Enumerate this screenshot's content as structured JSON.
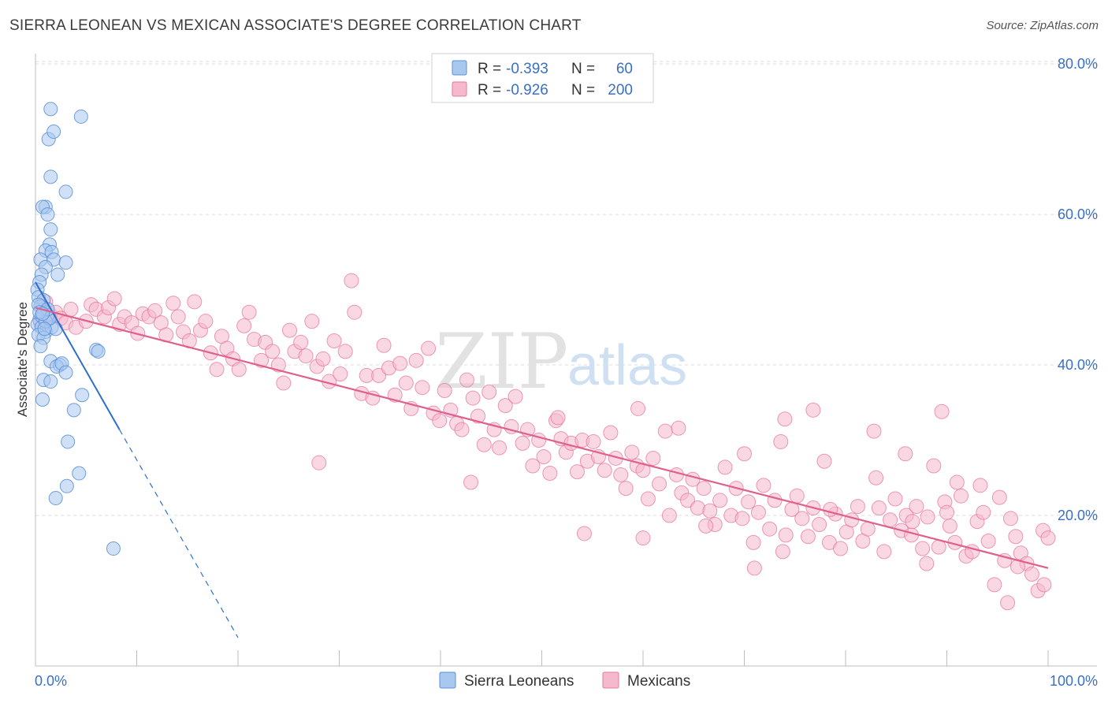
{
  "title": "SIERRA LEONEAN VS MEXICAN ASSOCIATE'S DEGREE CORRELATION CHART",
  "source": "Source: ZipAtlas.com",
  "watermark": {
    "zip": "ZIP",
    "atlas": "atlas"
  },
  "colors": {
    "blue_fill": "#a9c8f0",
    "blue_stroke": "#5b8fd6",
    "blue_line": "#2f6fcc",
    "pink_fill": "#f5b8cc",
    "pink_stroke": "#e7779d",
    "pink_line": "#e0608d",
    "grid": "#dcdcdc",
    "tick_text": "#3a6fc4"
  },
  "legend": {
    "rows": [
      {
        "r_label": "R = ",
        "r_value": "-0.393",
        "n_label": "N = ",
        "n_value": "60"
      },
      {
        "r_label": "R = ",
        "r_value": "-0.926",
        "n_label": "N = ",
        "n_value": "200"
      }
    ]
  },
  "bottom_legend": [
    "Sierra Leoneans",
    "Mexicans"
  ],
  "chart_data": {
    "type": "scatter",
    "xlabel": "",
    "ylabel": "Associate's Degree",
    "xlim": [
      0,
      100
    ],
    "ylim": [
      0,
      82
    ],
    "x_tick_labels": [
      "0.0%",
      "100.0%"
    ],
    "y_ticks": [
      20,
      40,
      60,
      80
    ],
    "y_tick_labels": [
      "20.0%",
      "40.0%",
      "60.0%",
      "80.0%"
    ],
    "grid": true,
    "legend_placement": "top-center",
    "series": [
      {
        "name": "Sierra Leoneans",
        "trend": {
          "x0": 0,
          "y0": 51.0,
          "x1": 8.3,
          "y1": 31.4,
          "dash_to_x": 20
        },
        "points": [
          [
            1.5,
            74
          ],
          [
            4.5,
            73
          ],
          [
            1.3,
            70
          ],
          [
            1.8,
            71
          ],
          [
            1.5,
            65
          ],
          [
            3,
            63
          ],
          [
            1,
            61
          ],
          [
            0.7,
            61
          ],
          [
            1.2,
            60
          ],
          [
            1.5,
            58
          ],
          [
            1.4,
            56
          ],
          [
            1.0,
            55.2
          ],
          [
            1.6,
            55
          ],
          [
            0.5,
            54
          ],
          [
            1.8,
            54
          ],
          [
            3.0,
            53.6
          ],
          [
            1.0,
            53
          ],
          [
            0.6,
            52
          ],
          [
            0.4,
            51
          ],
          [
            2.2,
            52
          ],
          [
            0.2,
            50
          ],
          [
            0.3,
            49
          ],
          [
            0.8,
            48.6
          ],
          [
            0.5,
            47.8
          ],
          [
            0.9,
            47
          ],
          [
            1.2,
            46.6
          ],
          [
            0.4,
            46
          ],
          [
            0.2,
            45.4
          ],
          [
            0.6,
            45
          ],
          [
            1.0,
            44.4
          ],
          [
            1.6,
            45
          ],
          [
            2,
            44.8
          ],
          [
            0.3,
            44
          ],
          [
            0.8,
            43.6
          ],
          [
            0.5,
            42.5
          ],
          [
            6,
            42
          ],
          [
            6.2,
            41.8
          ],
          [
            1.5,
            40.5
          ],
          [
            2.4,
            40
          ],
          [
            2.1,
            39.8
          ],
          [
            2.6,
            40.2
          ],
          [
            3.0,
            39
          ],
          [
            0.8,
            38
          ],
          [
            1.5,
            37.8
          ],
          [
            4.6,
            36
          ],
          [
            0.7,
            35.4
          ],
          [
            3.8,
            34
          ],
          [
            3.2,
            29.8
          ],
          [
            4.3,
            25.6
          ],
          [
            3.1,
            23.9
          ],
          [
            2.0,
            22.3
          ],
          [
            7.7,
            15.6
          ],
          [
            0.3,
            48
          ],
          [
            0.6,
            46.5
          ],
          [
            1.0,
            45.8
          ],
          [
            1.4,
            46.2
          ],
          [
            0.9,
            44.8
          ],
          [
            1.2,
            47.4
          ],
          [
            0.4,
            47
          ],
          [
            0.7,
            46.8
          ]
        ]
      },
      {
        "name": "Mexicans",
        "trend": {
          "x0": 0,
          "y0": 47.6,
          "x1": 100,
          "y1": 13.0
        },
        "points": [
          [
            0.5,
            45.6
          ],
          [
            1.0,
            48.4
          ],
          [
            1.5,
            46.6
          ],
          [
            2.0,
            47.0
          ],
          [
            2.5,
            46.2
          ],
          [
            3.0,
            45.6
          ],
          [
            3.5,
            47.4
          ],
          [
            4.0,
            45.0
          ],
          [
            5.0,
            45.8
          ],
          [
            5.5,
            48.0
          ],
          [
            6.0,
            47.4
          ],
          [
            6.8,
            46.4
          ],
          [
            7.2,
            47.6
          ],
          [
            7.8,
            48.8
          ],
          [
            8.3,
            45.4
          ],
          [
            8.8,
            46.4
          ],
          [
            9.5,
            45.6
          ],
          [
            10.1,
            44.2
          ],
          [
            10.6,
            46.8
          ],
          [
            11.2,
            46.4
          ],
          [
            11.8,
            47.2
          ],
          [
            12.4,
            45.6
          ],
          [
            12.9,
            44.0
          ],
          [
            13.6,
            48.2
          ],
          [
            14.1,
            46.4
          ],
          [
            14.6,
            44.4
          ],
          [
            15.2,
            43.2
          ],
          [
            15.7,
            48.4
          ],
          [
            16.3,
            44.6
          ],
          [
            16.8,
            45.8
          ],
          [
            17.3,
            41.6
          ],
          [
            17.9,
            39.4
          ],
          [
            18.4,
            43.8
          ],
          [
            18.9,
            42.2
          ],
          [
            19.5,
            40.8
          ],
          [
            20.1,
            39.4
          ],
          [
            20.6,
            45.2
          ],
          [
            21.1,
            47.0
          ],
          [
            21.6,
            43.4
          ],
          [
            22.3,
            40.6
          ],
          [
            22.7,
            43.0
          ],
          [
            23.4,
            41.8
          ],
          [
            24.0,
            40.0
          ],
          [
            24.5,
            37.6
          ],
          [
            25.1,
            44.6
          ],
          [
            25.6,
            41.8
          ],
          [
            26.2,
            43.0
          ],
          [
            26.7,
            41.2
          ],
          [
            27.3,
            45.8
          ],
          [
            27.8,
            39.8
          ],
          [
            28.4,
            40.8
          ],
          [
            29.0,
            37.8
          ],
          [
            29.5,
            43.2
          ],
          [
            30.1,
            38.8
          ],
          [
            30.6,
            41.8
          ],
          [
            31.2,
            51.2
          ],
          [
            31.5,
            47.0
          ],
          [
            32.2,
            36.2
          ],
          [
            32.7,
            38.6
          ],
          [
            33.3,
            35.6
          ],
          [
            33.9,
            38.6
          ],
          [
            34.4,
            42.6
          ],
          [
            34.9,
            39.6
          ],
          [
            35.5,
            36.0
          ],
          [
            36.0,
            40.2
          ],
          [
            36.6,
            37.6
          ],
          [
            37.1,
            34.2
          ],
          [
            37.6,
            40.6
          ],
          [
            38.2,
            37.0
          ],
          [
            38.8,
            42.2
          ],
          [
            39.3,
            33.6
          ],
          [
            39.9,
            32.6
          ],
          [
            40.4,
            36.6
          ],
          [
            41.0,
            34.0
          ],
          [
            41.6,
            32.2
          ],
          [
            42.1,
            31.4
          ],
          [
            42.6,
            38.0
          ],
          [
            43.2,
            35.6
          ],
          [
            43.7,
            33.2
          ],
          [
            44.3,
            29.4
          ],
          [
            44.8,
            36.4
          ],
          [
            45.3,
            31.4
          ],
          [
            45.8,
            29.0
          ],
          [
            46.4,
            34.6
          ],
          [
            47.0,
            31.8
          ],
          [
            47.4,
            35.8
          ],
          [
            48.1,
            29.6
          ],
          [
            48.6,
            31.4
          ],
          [
            49.1,
            26.6
          ],
          [
            49.7,
            30.0
          ],
          [
            50.2,
            27.8
          ],
          [
            50.8,
            25.6
          ],
          [
            51.4,
            32.6
          ],
          [
            51.9,
            30.2
          ],
          [
            52.4,
            28.4
          ],
          [
            52.9,
            29.6
          ],
          [
            53.5,
            25.8
          ],
          [
            54.0,
            30.0
          ],
          [
            54.5,
            27.2
          ],
          [
            55.1,
            29.8
          ],
          [
            55.6,
            27.8
          ],
          [
            56.2,
            26.0
          ],
          [
            56.8,
            31.0
          ],
          [
            57.3,
            27.6
          ],
          [
            57.8,
            25.4
          ],
          [
            58.3,
            23.6
          ],
          [
            58.9,
            28.4
          ],
          [
            59.4,
            26.6
          ],
          [
            60.0,
            26.0
          ],
          [
            60.5,
            22.2
          ],
          [
            61.0,
            27.6
          ],
          [
            61.6,
            24.2
          ],
          [
            62.2,
            31.2
          ],
          [
            62.6,
            20.0
          ],
          [
            63.3,
            25.4
          ],
          [
            63.8,
            23.0
          ],
          [
            64.4,
            22.0
          ],
          [
            64.9,
            24.8
          ],
          [
            65.4,
            21.0
          ],
          [
            66.0,
            23.6
          ],
          [
            66.6,
            20.6
          ],
          [
            67.1,
            18.8
          ],
          [
            67.6,
            22.0
          ],
          [
            68.1,
            26.4
          ],
          [
            68.7,
            20.0
          ],
          [
            69.2,
            23.6
          ],
          [
            69.8,
            19.6
          ],
          [
            70.4,
            21.8
          ],
          [
            70.9,
            16.4
          ],
          [
            71.4,
            20.4
          ],
          [
            71.9,
            24.0
          ],
          [
            72.5,
            18.2
          ],
          [
            73.0,
            22.0
          ],
          [
            73.6,
            29.8
          ],
          [
            74.1,
            17.4
          ],
          [
            74.7,
            20.8
          ],
          [
            75.2,
            22.6
          ],
          [
            75.7,
            19.6
          ],
          [
            76.3,
            17.2
          ],
          [
            76.8,
            21.0
          ],
          [
            77.4,
            18.8
          ],
          [
            77.9,
            27.2
          ],
          [
            78.4,
            16.4
          ],
          [
            79.0,
            20.2
          ],
          [
            79.5,
            15.6
          ],
          [
            80.1,
            17.8
          ],
          [
            80.6,
            19.4
          ],
          [
            81.2,
            21.2
          ],
          [
            81.7,
            16.6
          ],
          [
            82.2,
            18.2
          ],
          [
            82.8,
            31.2
          ],
          [
            83.3,
            21.0
          ],
          [
            83.8,
            15.2
          ],
          [
            84.4,
            19.4
          ],
          [
            84.9,
            22.2
          ],
          [
            85.5,
            18.0
          ],
          [
            86.0,
            20.0
          ],
          [
            86.5,
            17.4
          ],
          [
            87.0,
            21.2
          ],
          [
            87.6,
            15.6
          ],
          [
            88.1,
            19.8
          ],
          [
            88.7,
            26.6
          ],
          [
            89.2,
            15.8
          ],
          [
            89.8,
            21.8
          ],
          [
            90.3,
            18.6
          ],
          [
            90.8,
            16.4
          ],
          [
            91.4,
            22.6
          ],
          [
            91.9,
            14.6
          ],
          [
            92.5,
            15.2
          ],
          [
            93.0,
            19.2
          ],
          [
            93.6,
            20.4
          ],
          [
            94.1,
            16.6
          ],
          [
            94.7,
            10.8
          ],
          [
            95.2,
            22.4
          ],
          [
            95.7,
            14.0
          ],
          [
            96.3,
            19.6
          ],
          [
            96.8,
            17.2
          ],
          [
            97.3,
            15.0
          ],
          [
            97.9,
            13.6
          ],
          [
            98.4,
            12.2
          ],
          [
            99.0,
            10.0
          ],
          [
            99.5,
            18.0
          ],
          [
            100.0,
            17.0
          ],
          [
            76.8,
            34.0
          ],
          [
            59.5,
            34.2
          ],
          [
            89.5,
            33.8
          ],
          [
            96.0,
            8.4
          ],
          [
            83.0,
            25.0
          ],
          [
            74.0,
            32.8
          ],
          [
            90.0,
            20.4
          ],
          [
            85.9,
            28.2
          ],
          [
            60.0,
            17.0
          ],
          [
            70.0,
            28.2
          ],
          [
            43.0,
            24.4
          ],
          [
            51.6,
            33.0
          ],
          [
            28.0,
            27.0
          ],
          [
            54.2,
            17.6
          ],
          [
            91.0,
            24.4
          ],
          [
            93.3,
            24.0
          ],
          [
            86.6,
            19.2
          ],
          [
            63.5,
            31.6
          ],
          [
            78.5,
            20.8
          ],
          [
            66.2,
            18.6
          ],
          [
            71.0,
            13.0
          ],
          [
            73.8,
            15.2
          ],
          [
            88.0,
            13.6
          ],
          [
            99.6,
            10.8
          ],
          [
            97.0,
            13.2
          ]
        ]
      }
    ]
  }
}
